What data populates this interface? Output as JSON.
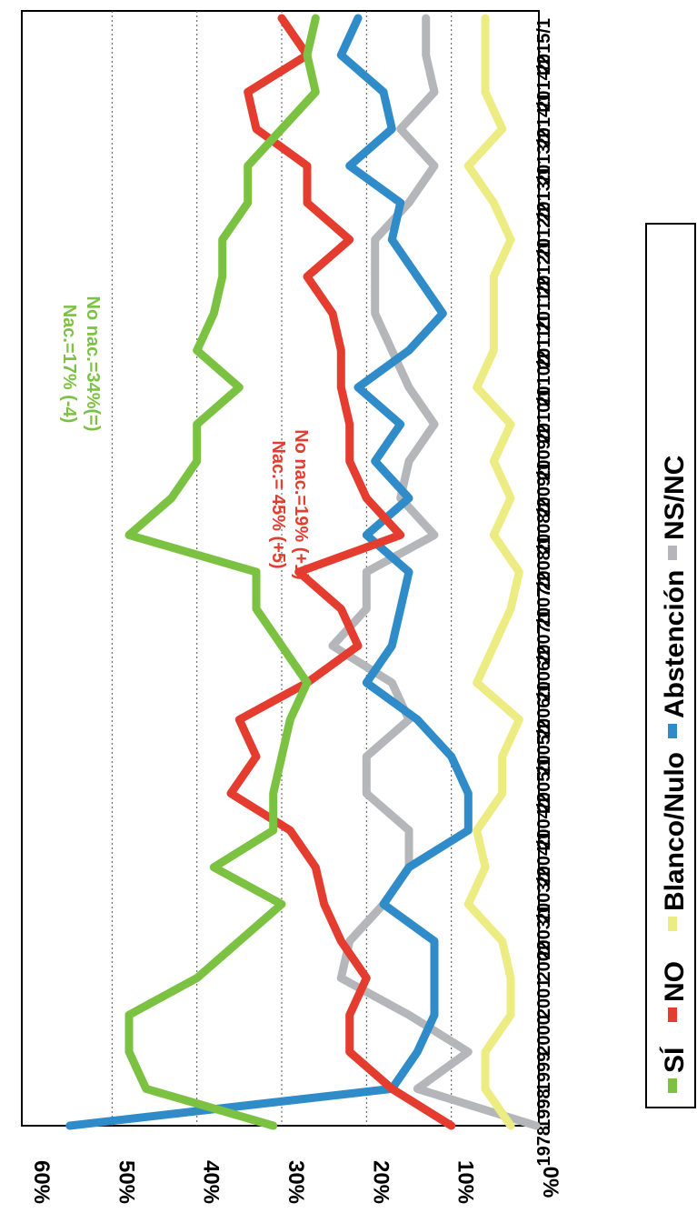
{
  "chart_data": {
    "type": "line",
    "orientation": "rotated-90-clockwise",
    "title": "",
    "xlabel": "",
    "ylabel": "",
    "ylim": [
      0,
      60
    ],
    "y_ticks": [
      "0%",
      "10%",
      "20%",
      "30%",
      "40%",
      "50%",
      "60%"
    ],
    "grid": true,
    "legend_position": "right",
    "categories": [
      "1978",
      "1998",
      "1999",
      "2000",
      "2001",
      "2002",
      "2003/1",
      "2003/2",
      "2004/1",
      "2004/2",
      "2005/1",
      "2005/2",
      "2006/1",
      "2006/2",
      "2007/1",
      "2007/2",
      "2008/1",
      "2008/2",
      "2009/1",
      "2009/2",
      "2010/1",
      "2010/2",
      "2011/1",
      "2011/2",
      "2012/1",
      "2012/2",
      "2013/1",
      "2013/2",
      "2014/1",
      "2014/2",
      "2015/1"
    ],
    "series": [
      {
        "name": "SÍ",
        "color": "#7cc242",
        "values": [
          31,
          46,
          48,
          48,
          40,
          35,
          30,
          38,
          31,
          31,
          30,
          29,
          27,
          30,
          33,
          33,
          48,
          43,
          40,
          40,
          35,
          40,
          38,
          37,
          37,
          34,
          34,
          30,
          26,
          27,
          26
        ]
      },
      {
        "name": "NO",
        "color": "#e43d30",
        "values": [
          10,
          17,
          22,
          22,
          20,
          23,
          25,
          26,
          29,
          36,
          33,
          35,
          27,
          21,
          23,
          28,
          16,
          20,
          22,
          22,
          23,
          23,
          24,
          27,
          22,
          27,
          27,
          33,
          34,
          27,
          30
        ]
      },
      {
        "name": "Blanco/Nulo",
        "color": "#ecec82",
        "values": [
          3,
          6,
          6,
          3,
          3,
          4,
          8,
          6,
          7,
          4,
          4,
          2,
          7,
          5,
          3,
          2,
          5,
          3,
          5,
          3,
          7,
          5,
          5,
          5,
          3,
          5,
          8,
          4,
          6,
          6,
          6
        ]
      },
      {
        "name": "Abstención",
        "color": "#2f8cc9",
        "values": [
          55,
          17,
          14,
          12,
          12,
          12,
          18,
          15,
          8,
          8,
          10,
          14,
          20,
          17,
          16,
          15,
          20,
          15,
          19,
          16,
          21,
          15,
          11,
          14,
          17,
          16,
          22,
          17,
          18,
          23,
          21
        ]
      },
      {
        "name": "NS/NC",
        "color": "#b4b6b9",
        "values": [
          0,
          14,
          8,
          15,
          23,
          22,
          18,
          15,
          15,
          20,
          20,
          15,
          17,
          24,
          20,
          20,
          12,
          16,
          15,
          12,
          15,
          17,
          19,
          19,
          19,
          15,
          12,
          16,
          12,
          13,
          13
        ]
      }
    ],
    "annotations": [
      {
        "text": "Nac.=17% (-4)",
        "color": "#7cc242"
      },
      {
        "text": "No nac.=34%(=)",
        "color": "#7cc242"
      },
      {
        "text": "Nac.= 45% (+5)",
        "color": "#e43d30"
      },
      {
        "text": "No nac.=19% (+1)",
        "color": "#e43d30"
      }
    ]
  }
}
